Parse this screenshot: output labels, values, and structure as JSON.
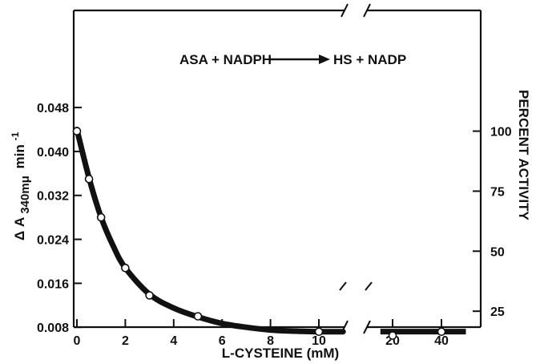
{
  "chart_data": {
    "type": "line",
    "title": "",
    "annotation": {
      "reaction_left": "ASA + NADPH",
      "reaction_right": "HS + NADP"
    },
    "xlabel": "L-CYSTEINE (mM)",
    "ylabel_main": "Δ A",
    "ylabel_sub": "340mμ",
    "ylabel_unit": "min",
    "ylabel_exp": "-1",
    "y2label": "PERCENT ACTIVITY",
    "x_segments": [
      {
        "xlim": [
          0,
          11
        ],
        "ticks": [
          "0",
          "2",
          "4",
          "6",
          "8",
          "10"
        ],
        "tick_values": [
          0,
          2,
          4,
          6,
          8,
          10
        ]
      },
      {
        "xlim": [
          15,
          50
        ],
        "ticks": [
          "20",
          "40"
        ],
        "tick_values": [
          20,
          40
        ]
      }
    ],
    "ylim": [
      0,
      0.052
    ],
    "y_ticks": [
      "0.008",
      "0.016",
      "0.024",
      "0.032",
      "0.040",
      "0.048"
    ],
    "y_tick_values": [
      0.008,
      0.016,
      0.024,
      0.032,
      0.04,
      0.048
    ],
    "y2_ticks": [
      "25",
      "50",
      "75",
      "100"
    ],
    "y2_tick_values": [
      25,
      50,
      75,
      100
    ],
    "y2_scale": {
      "value_at_100_percent": 0.0437
    },
    "series": [
      {
        "points": [
          {
            "x": 0,
            "y": 0.0437
          },
          {
            "x": 0.5,
            "y": 0.035
          },
          {
            "x": 1,
            "y": 0.028
          },
          {
            "x": 2,
            "y": 0.0188
          },
          {
            "x": 3,
            "y": 0.0138
          },
          {
            "x": 5,
            "y": 0.01
          },
          {
            "x": 10,
            "y": 0.0072
          },
          {
            "x": 20,
            "y": 0.0065
          },
          {
            "x": 40,
            "y": 0.0072
          }
        ],
        "fit_curve": [
          {
            "x": 0,
            "y": 0.044
          },
          {
            "x": 0.5,
            "y": 0.0352
          },
          {
            "x": 1,
            "y": 0.028
          },
          {
            "x": 1.5,
            "y": 0.0228
          },
          {
            "x": 2,
            "y": 0.0188
          },
          {
            "x": 3,
            "y": 0.014
          },
          {
            "x": 4,
            "y": 0.0115
          },
          {
            "x": 5,
            "y": 0.0099
          },
          {
            "x": 6,
            "y": 0.0087
          },
          {
            "x": 7,
            "y": 0.008
          },
          {
            "x": 8,
            "y": 0.0075
          },
          {
            "x": 9,
            "y": 0.0073
          },
          {
            "x": 10,
            "y": 0.0072
          },
          {
            "x": 11,
            "y": 0.0072
          }
        ],
        "fit_flat": [
          {
            "x": 15,
            "y": 0.0072
          },
          {
            "x": 50,
            "y": 0.0072
          }
        ]
      }
    ],
    "grid": false,
    "legend": "none",
    "colors": {
      "line": "#111111",
      "marker_fill": "#ffffff",
      "text": "#111111"
    }
  }
}
